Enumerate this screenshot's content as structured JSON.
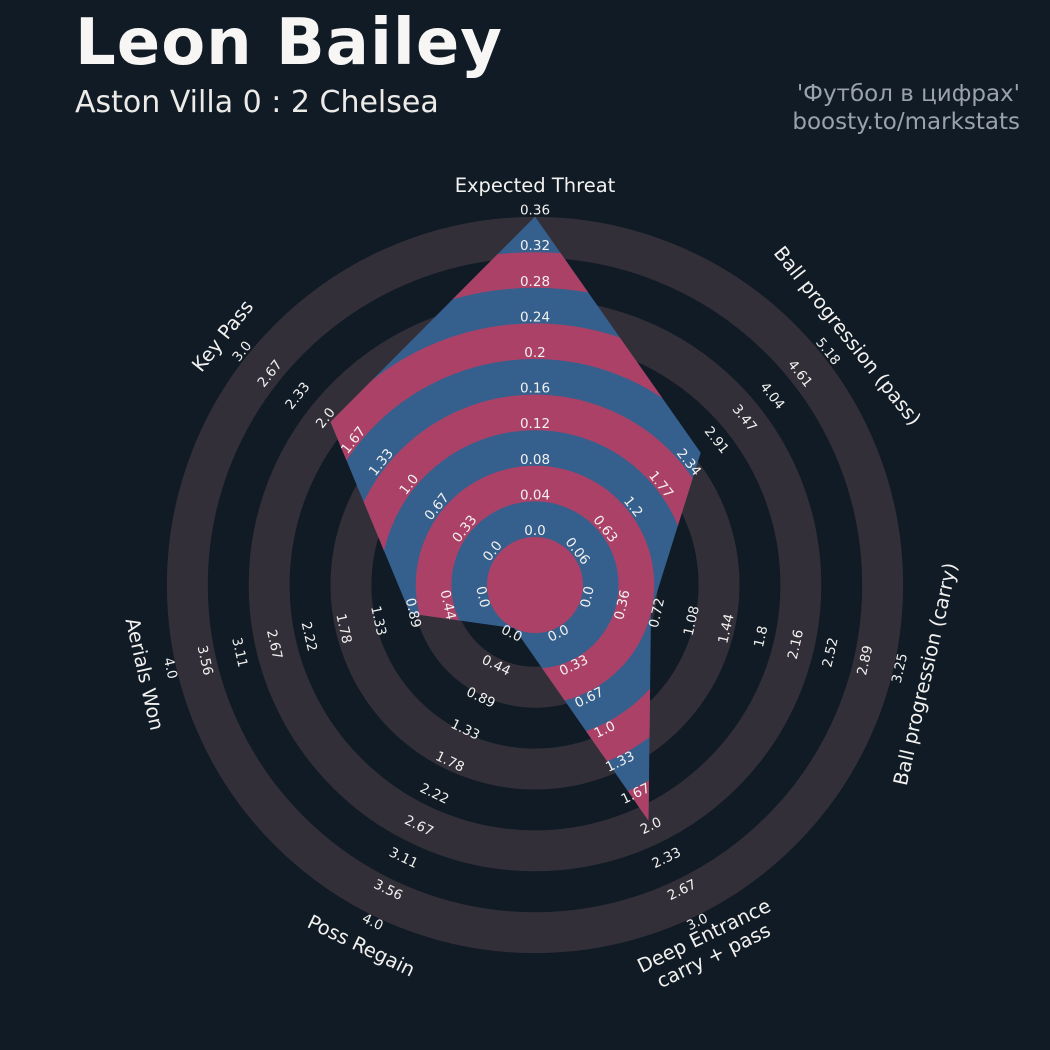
{
  "header": {
    "title": "Leon Bailey",
    "subtitle": "Aston Villa 0 : 2 Chelsea",
    "credit_line1": "'Футбол в цифрах'",
    "credit_line2": "boosty.to/markstats"
  },
  "chart_data": {
    "type": "radar",
    "title": "Leon Bailey — Aston Villa 0 : 2 Chelsea",
    "legend_position": "none",
    "grid": "concentric-rings",
    "start_angle_deg": 90,
    "direction": "clockwise",
    "params": [
      {
        "label": "Expected Threat",
        "min": 0.0,
        "max": 0.36,
        "value": 0.36,
        "ticks": [
          "0.0",
          "0.04",
          "0.08",
          "0.12",
          "0.16",
          "0.2",
          "0.24",
          "0.28",
          "0.32",
          "0.36"
        ]
      },
      {
        "label": "Ball progression (pass)",
        "min": 0.06,
        "max": 5.18,
        "value": 2.68,
        "ticks": [
          "0.06",
          "0.63",
          "1.2",
          "1.77",
          "2.34",
          "2.91",
          "3.47",
          "4.04",
          "4.61",
          "5.18"
        ]
      },
      {
        "label": "Ball progression (carry)",
        "min": 0.0,
        "max": 3.25,
        "value": 0.72,
        "ticks": [
          "0.0",
          "0.36",
          "0.72",
          "1.08",
          "1.44",
          "1.8",
          "2.16",
          "2.52",
          "2.89",
          "3.25"
        ]
      },
      {
        "label": "Deep Entrance\ncarry + pass",
        "min": 0.0,
        "max": 3.0,
        "value": 2.0,
        "ticks": [
          "0.0",
          "0.33",
          "0.67",
          "1.0",
          "1.33",
          "1.67",
          "2.0",
          "2.33",
          "2.67",
          "3.0"
        ]
      },
      {
        "label": "Poss Regain",
        "min": 0.0,
        "max": 4.0,
        "value": 0.0,
        "ticks": [
          "0.0",
          "0.44",
          "0.89",
          "1.33",
          "1.78",
          "2.22",
          "2.67",
          "3.11",
          "3.56",
          "4.0"
        ]
      },
      {
        "label": "Aerials Won",
        "min": 0.0,
        "max": 4.0,
        "value": 1.0,
        "ticks": [
          "0.0",
          "0.44",
          "0.89",
          "1.33",
          "1.78",
          "2.22",
          "2.67",
          "3.11",
          "3.56",
          "4.0"
        ]
      },
      {
        "label": "Key Pass",
        "min": 0.0,
        "max": 3.0,
        "value": 2.0,
        "ticks": [
          "0.0",
          "0.33",
          "0.67",
          "1.0",
          "1.33",
          "1.67",
          "2.0",
          "2.33",
          "2.67",
          "3.0"
        ]
      }
    ],
    "colors": {
      "background": "#101b25",
      "ring_gray": "#332f38",
      "radar_fill_blue": "#35608d",
      "radar_ring_crimson": "#ac4167",
      "tick_text": "#f2f1ef",
      "param_text": "#f2f1ef"
    }
  }
}
